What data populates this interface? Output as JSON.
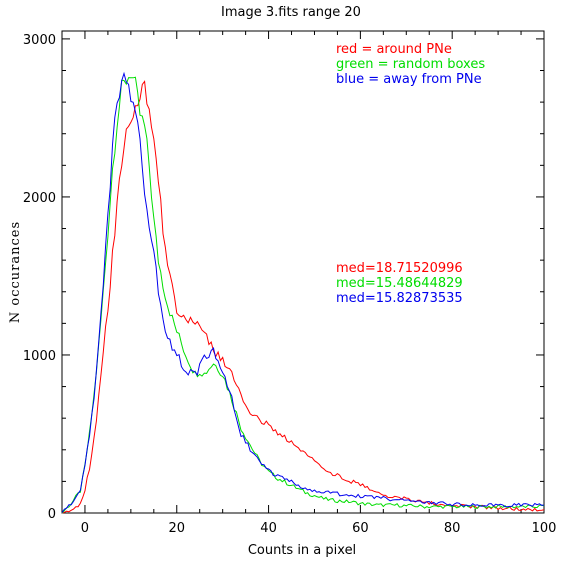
{
  "chart_data": {
    "type": "line",
    "title": "Image 3.fits   range 20",
    "xlabel": "Counts in a pixel",
    "ylabel": "N occurances",
    "xlim": [
      -5,
      100
    ],
    "ylim": [
      0,
      3050
    ],
    "x_ticks": [
      0,
      20,
      40,
      60,
      80,
      100
    ],
    "y_ticks": [
      0,
      1000,
      2000,
      3000
    ],
    "grid": false,
    "legend": [
      "red = around PNe",
      "green = random boxes",
      "blue = away from PNe"
    ],
    "annotations": [
      "med=18.71520996",
      "med=15.48644829",
      "med=15.82873535"
    ],
    "series": [
      {
        "name": "red = around PNe",
        "color": "#ff0000",
        "x": [
          -5,
          -3,
          -1,
          0,
          1,
          2,
          3,
          4,
          5,
          6,
          7,
          8,
          9,
          10,
          11,
          12,
          13,
          14,
          15,
          16,
          17,
          18,
          19,
          20,
          22,
          24,
          25,
          26,
          28,
          30,
          32,
          34,
          36,
          38,
          40,
          42,
          44,
          46,
          48,
          50,
          52,
          54,
          56,
          58,
          60,
          62,
          64,
          66,
          68,
          70,
          72,
          74,
          76,
          78,
          80,
          82,
          84,
          86,
          88,
          90,
          92,
          94,
          96,
          98,
          100
        ],
        "y": [
          0,
          20,
          60,
          150,
          280,
          480,
          720,
          1000,
          1300,
          1620,
          1940,
          2200,
          2380,
          2480,
          2560,
          2640,
          2700,
          2550,
          2350,
          2100,
          1800,
          1580,
          1450,
          1300,
          1230,
          1180,
          1200,
          1150,
          1020,
          960,
          880,
          730,
          640,
          580,
          560,
          510,
          470,
          420,
          370,
          340,
          290,
          250,
          230,
          200,
          180,
          150,
          130,
          110,
          100,
          90,
          80,
          70,
          60,
          55,
          50,
          45,
          40,
          40,
          35,
          30,
          30,
          25,
          25,
          20,
          20
        ]
      },
      {
        "name": "green = random boxes",
        "color": "#00dd00",
        "x": [
          -5,
          -3,
          -1,
          0,
          1,
          2,
          3,
          4,
          5,
          6,
          7,
          8,
          9,
          10,
          11,
          12,
          13,
          14,
          15,
          16,
          17,
          18,
          19,
          20,
          22,
          24,
          25,
          26,
          28,
          30,
          32,
          34,
          36,
          38,
          40,
          42,
          44,
          46,
          48,
          50,
          52,
          54,
          56,
          58,
          60,
          62,
          64,
          66,
          68,
          70,
          72,
          74,
          76,
          78,
          80,
          82,
          84,
          86,
          88,
          90,
          92,
          94,
          96,
          98,
          100
        ],
        "y": [
          0,
          60,
          140,
          300,
          500,
          750,
          1050,
          1400,
          1780,
          2180,
          2480,
          2680,
          2740,
          2790,
          2700,
          2520,
          2440,
          2200,
          1850,
          1600,
          1450,
          1320,
          1230,
          1150,
          1000,
          880,
          900,
          880,
          950,
          880,
          720,
          540,
          430,
          330,
          260,
          220,
          190,
          160,
          130,
          110,
          90,
          80,
          75,
          70,
          60,
          55,
          50,
          50,
          50,
          45,
          45,
          40,
          40,
          40,
          40,
          40,
          40,
          40,
          40,
          40,
          40,
          40,
          40,
          40,
          45
        ]
      },
      {
        "name": "blue = away from PNe",
        "color": "#0000ee",
        "x": [
          -5,
          -3,
          -1,
          0,
          1,
          2,
          3,
          4,
          5,
          6,
          7,
          8,
          9,
          10,
          11,
          12,
          13,
          14,
          15,
          16,
          17,
          18,
          19,
          20,
          22,
          24,
          25,
          26,
          28,
          30,
          32,
          34,
          36,
          38,
          40,
          42,
          44,
          46,
          48,
          50,
          52,
          54,
          56,
          58,
          60,
          62,
          64,
          66,
          68,
          70,
          72,
          74,
          76,
          78,
          80,
          82,
          84,
          86,
          88,
          90,
          92,
          94,
          96,
          98,
          100
        ],
        "y": [
          0,
          60,
          140,
          300,
          500,
          750,
          1050,
          1450,
          1850,
          2300,
          2600,
          2700,
          2770,
          2650,
          2550,
          2400,
          2050,
          1850,
          1650,
          1400,
          1250,
          1100,
          1050,
          1000,
          900,
          880,
          920,
          1000,
          1020,
          880,
          720,
          500,
          400,
          320,
          270,
          230,
          210,
          180,
          160,
          140,
          130,
          125,
          120,
          110,
          105,
          100,
          95,
          90,
          85,
          80,
          75,
          70,
          65,
          60,
          55,
          55,
          50,
          50,
          50,
          50,
          50,
          50,
          50,
          50,
          50
        ]
      }
    ]
  }
}
